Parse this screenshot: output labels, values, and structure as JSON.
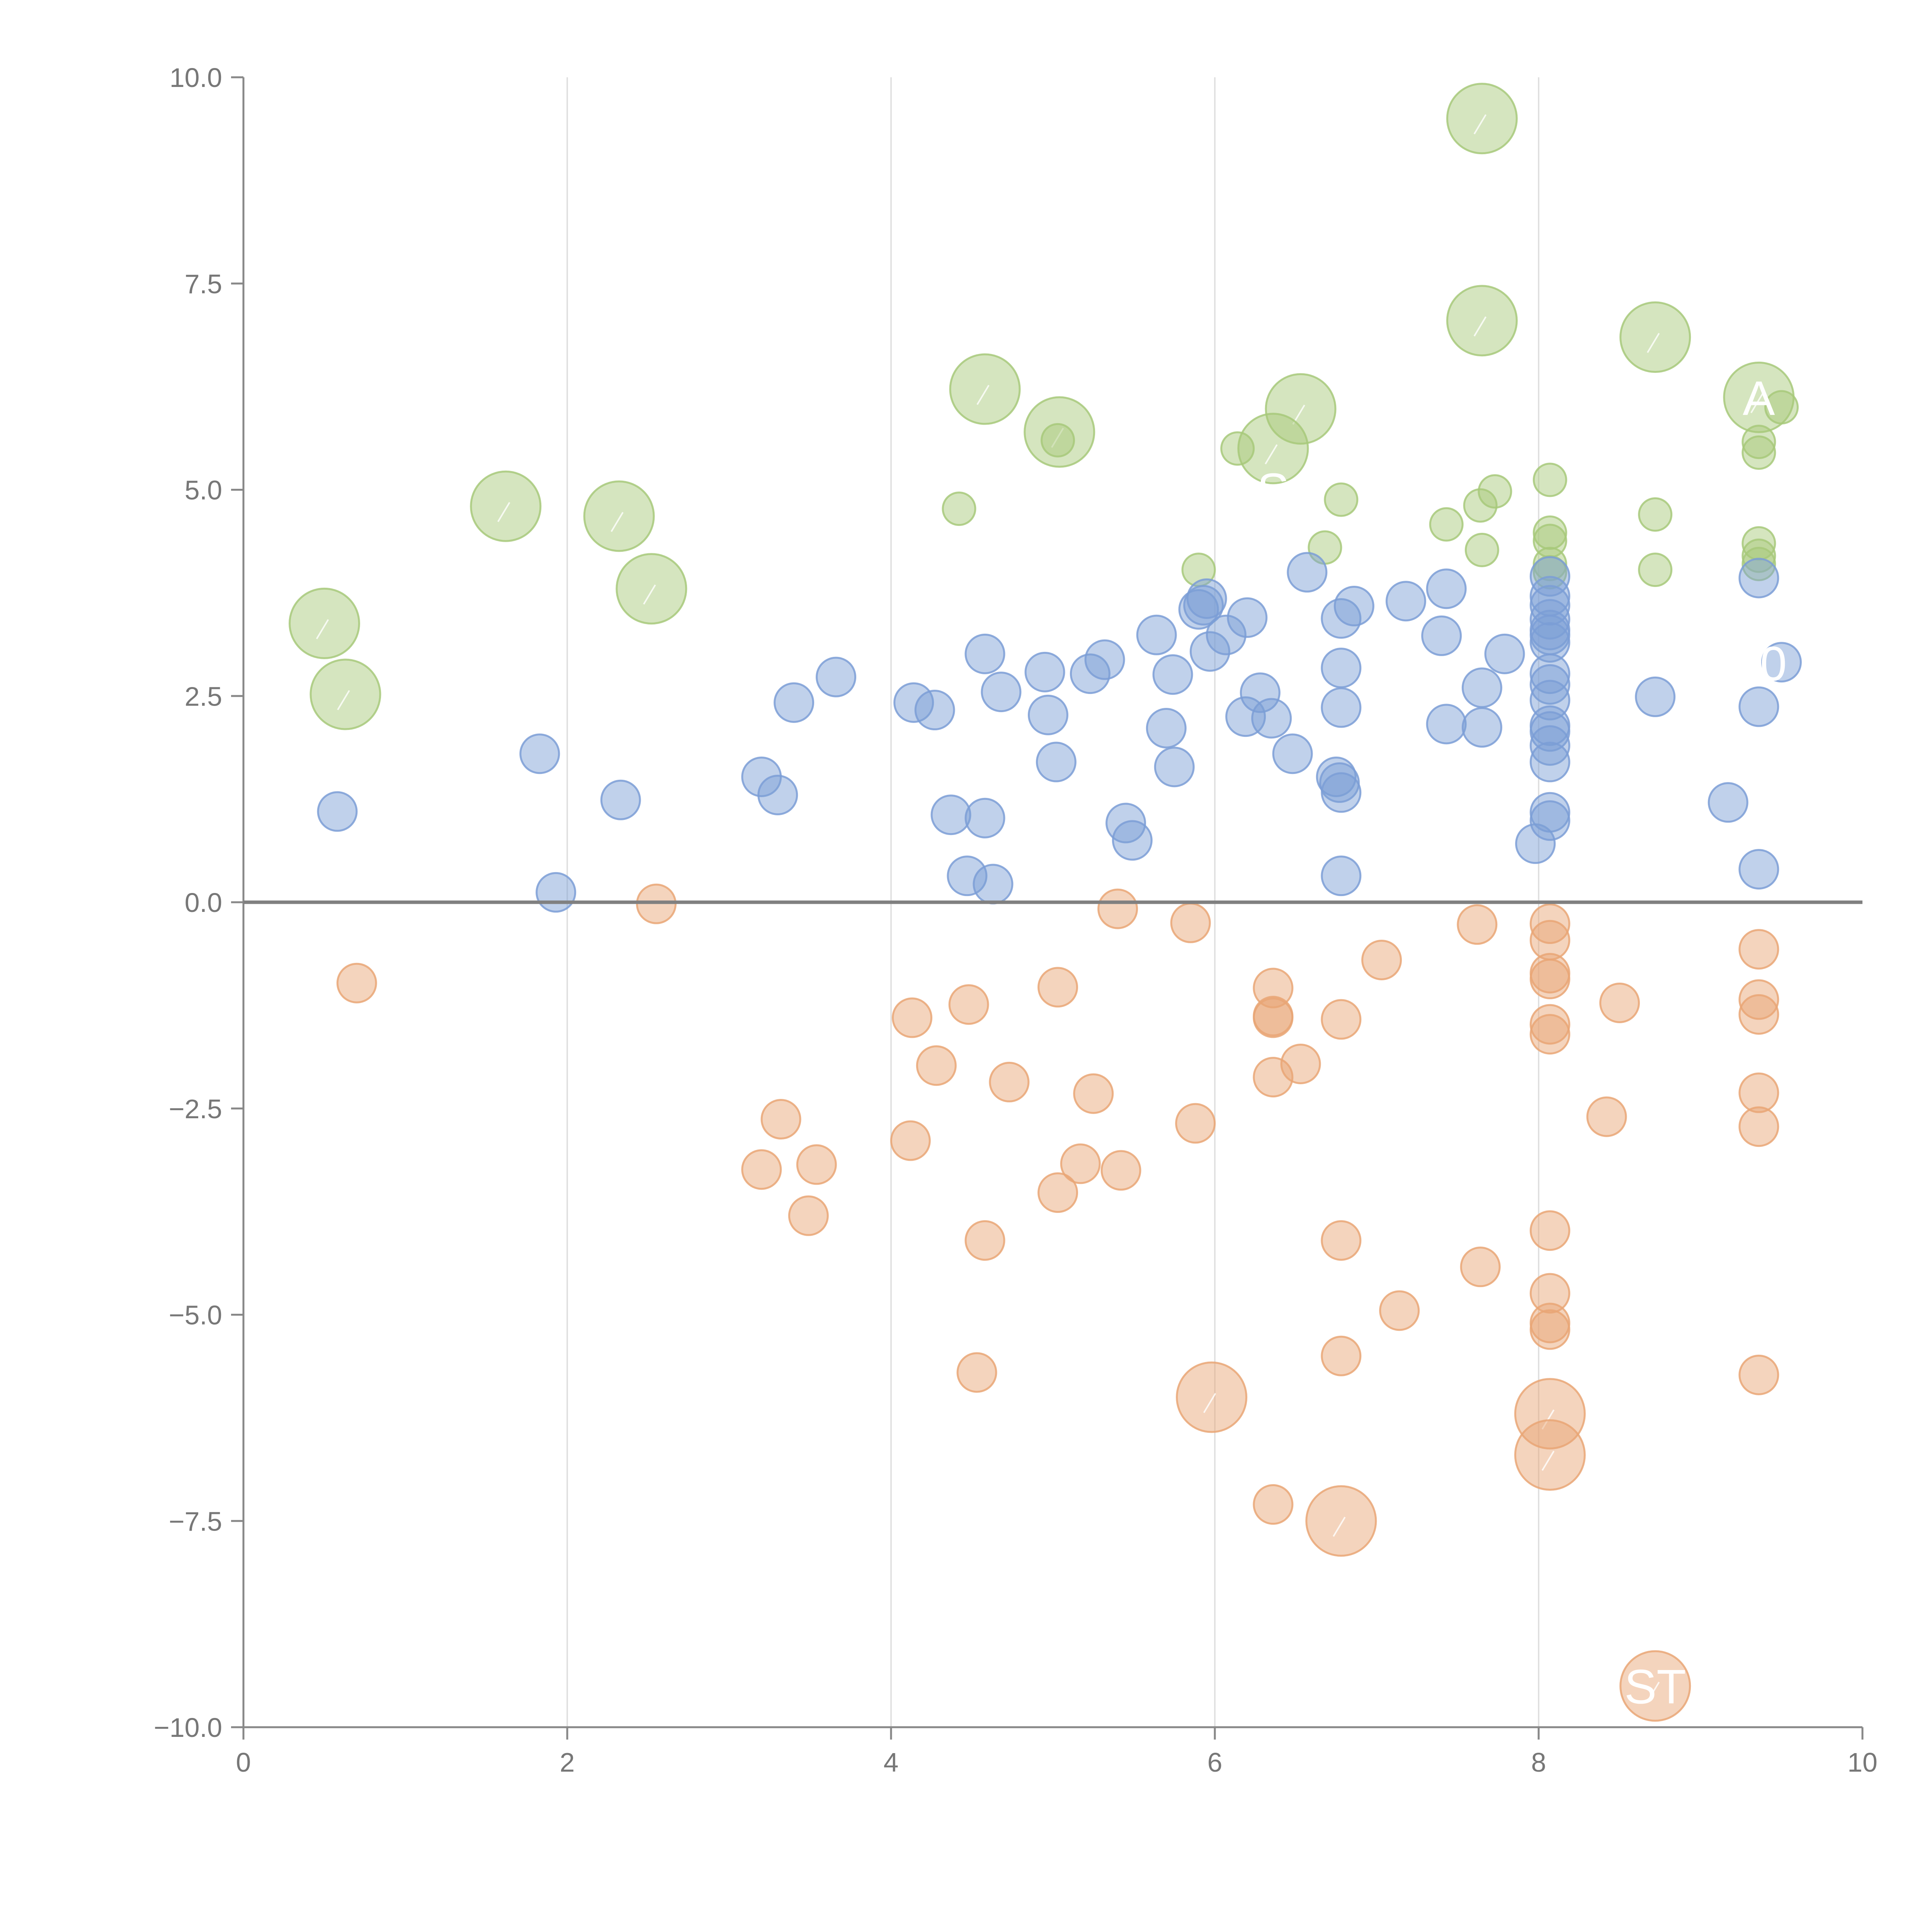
{
  "chart_data": {
    "type": "scatter",
    "title": "",
    "xlabel": "",
    "ylabel": "",
    "xlim": [
      0,
      10
    ],
    "ylim": [
      -10,
      10
    ],
    "x_ticks": [
      0,
      2,
      4,
      6,
      8,
      10
    ],
    "y_ticks": [
      -10.0,
      -7.5,
      -5.0,
      -2.5,
      0.0,
      2.5,
      5.0,
      7.5,
      10.0
    ],
    "x_tick_labels": [
      "0",
      "2",
      "4",
      "6",
      "8",
      "10"
    ],
    "y_tick_labels": [
      "−10.0",
      "−7.5",
      "−5.0",
      "−2.5",
      "0.0",
      "2.5",
      "5.0",
      "7.5",
      "10.0"
    ],
    "grid": "vertical lines at x ticks",
    "reference_line": {
      "y": 0
    },
    "series": [
      {
        "name": "green",
        "color": "#a7c97a",
        "points": [
          {
            "x": 7.65,
            "y": 9.5,
            "size": "large"
          },
          {
            "x": 7.65,
            "y": 7.05,
            "size": "large"
          },
          {
            "x": 8.72,
            "y": 6.85,
            "size": "large"
          },
          {
            "x": 4.58,
            "y": 6.22,
            "size": "large"
          },
          {
            "x": 5.04,
            "y": 5.7,
            "size": "large"
          },
          {
            "x": 6.53,
            "y": 5.98,
            "size": "large"
          },
          {
            "x": 6.36,
            "y": 5.5,
            "size": "large"
          },
          {
            "x": 9.36,
            "y": 6.12,
            "size": "large"
          },
          {
            "x": 1.62,
            "y": 4.8,
            "size": "large"
          },
          {
            "x": 2.32,
            "y": 4.68,
            "size": "large"
          },
          {
            "x": 2.52,
            "y": 3.8,
            "size": "large"
          },
          {
            "x": 0.5,
            "y": 3.38,
            "size": "large"
          },
          {
            "x": 0.63,
            "y": 2.52,
            "size": "large"
          },
          {
            "x": 5.03,
            "y": 5.6,
            "size": "small"
          },
          {
            "x": 6.14,
            "y": 5.5,
            "size": "small"
          },
          {
            "x": 4.42,
            "y": 4.77,
            "size": "small"
          },
          {
            "x": 6.78,
            "y": 4.88,
            "size": "small"
          },
          {
            "x": 5.9,
            "y": 4.03,
            "size": "small"
          },
          {
            "x": 6.68,
            "y": 4.3,
            "size": "small"
          },
          {
            "x": 7.43,
            "y": 4.58,
            "size": "small"
          },
          {
            "x": 7.64,
            "y": 4.81,
            "size": "small"
          },
          {
            "x": 7.73,
            "y": 4.98,
            "size": "small"
          },
          {
            "x": 7.65,
            "y": 4.27,
            "size": "small"
          },
          {
            "x": 8.07,
            "y": 5.12,
            "size": "small"
          },
          {
            "x": 8.07,
            "y": 4.48,
            "size": "small"
          },
          {
            "x": 8.07,
            "y": 4.38,
            "size": "small"
          },
          {
            "x": 8.07,
            "y": 4.1,
            "size": "small"
          },
          {
            "x": 8.07,
            "y": 4.0,
            "size": "small"
          },
          {
            "x": 8.72,
            "y": 4.7,
            "size": "small"
          },
          {
            "x": 8.72,
            "y": 4.03,
            "size": "small"
          },
          {
            "x": 9.36,
            "y": 5.58,
            "size": "small"
          },
          {
            "x": 9.36,
            "y": 5.45,
            "size": "small"
          },
          {
            "x": 9.5,
            "y": 6.0,
            "size": "small"
          },
          {
            "x": 9.36,
            "y": 4.35,
            "size": "small"
          },
          {
            "x": 9.36,
            "y": 4.2,
            "size": "small"
          },
          {
            "x": 9.36,
            "y": 4.1,
            "size": "small"
          }
        ]
      },
      {
        "name": "blue",
        "color": "#7b9ed6",
        "points": [
          {
            "x": 0.58,
            "y": 1.1
          },
          {
            "x": 1.83,
            "y": 1.8
          },
          {
            "x": 1.93,
            "y": 0.12
          },
          {
            "x": 2.33,
            "y": 1.24
          },
          {
            "x": 3.2,
            "y": 1.52
          },
          {
            "x": 3.3,
            "y": 1.3
          },
          {
            "x": 3.4,
            "y": 2.42
          },
          {
            "x": 3.66,
            "y": 2.73
          },
          {
            "x": 4.14,
            "y": 2.42
          },
          {
            "x": 4.27,
            "y": 2.33
          },
          {
            "x": 4.37,
            "y": 1.06
          },
          {
            "x": 4.47,
            "y": 0.32
          },
          {
            "x": 4.58,
            "y": 3.01
          },
          {
            "x": 4.58,
            "y": 1.02
          },
          {
            "x": 4.63,
            "y": 0.22
          },
          {
            "x": 4.68,
            "y": 2.55
          },
          {
            "x": 4.95,
            "y": 2.79
          },
          {
            "x": 4.97,
            "y": 2.27
          },
          {
            "x": 5.02,
            "y": 1.7
          },
          {
            "x": 5.23,
            "y": 2.77
          },
          {
            "x": 5.32,
            "y": 2.94
          },
          {
            "x": 5.45,
            "y": 0.96
          },
          {
            "x": 5.49,
            "y": 0.75
          },
          {
            "x": 5.64,
            "y": 3.24
          },
          {
            "x": 5.7,
            "y": 2.11
          },
          {
            "x": 5.74,
            "y": 2.76
          },
          {
            "x": 5.75,
            "y": 1.64
          },
          {
            "x": 5.9,
            "y": 3.55
          },
          {
            "x": 5.93,
            "y": 3.6
          },
          {
            "x": 5.95,
            "y": 3.68
          },
          {
            "x": 5.97,
            "y": 3.04
          },
          {
            "x": 6.07,
            "y": 3.24
          },
          {
            "x": 6.19,
            "y": 2.25
          },
          {
            "x": 6.2,
            "y": 3.45
          },
          {
            "x": 6.28,
            "y": 2.54
          },
          {
            "x": 6.35,
            "y": 2.23
          },
          {
            "x": 6.48,
            "y": 1.8
          },
          {
            "x": 6.57,
            "y": 4.0
          },
          {
            "x": 6.75,
            "y": 1.52
          },
          {
            "x": 6.77,
            "y": 1.45
          },
          {
            "x": 6.78,
            "y": 1.33
          },
          {
            "x": 6.78,
            "y": 3.44
          },
          {
            "x": 6.78,
            "y": 2.84
          },
          {
            "x": 6.78,
            "y": 2.36
          },
          {
            "x": 6.78,
            "y": 0.32
          },
          {
            "x": 6.86,
            "y": 3.59
          },
          {
            "x": 7.18,
            "y": 3.65
          },
          {
            "x": 7.4,
            "y": 3.23
          },
          {
            "x": 7.43,
            "y": 3.8
          },
          {
            "x": 7.43,
            "y": 2.16
          },
          {
            "x": 7.65,
            "y": 2.6
          },
          {
            "x": 7.65,
            "y": 2.12
          },
          {
            "x": 7.79,
            "y": 3.01
          },
          {
            "x": 7.98,
            "y": 0.71
          },
          {
            "x": 8.07,
            "y": 3.95
          },
          {
            "x": 8.07,
            "y": 3.71
          },
          {
            "x": 8.07,
            "y": 3.6
          },
          {
            "x": 8.07,
            "y": 3.43
          },
          {
            "x": 8.07,
            "y": 3.3
          },
          {
            "x": 8.07,
            "y": 3.24
          },
          {
            "x": 8.07,
            "y": 3.15
          },
          {
            "x": 8.07,
            "y": 2.77
          },
          {
            "x": 8.07,
            "y": 2.64
          },
          {
            "x": 8.07,
            "y": 2.45
          },
          {
            "x": 8.07,
            "y": 2.14
          },
          {
            "x": 8.07,
            "y": 2.07
          },
          {
            "x": 8.07,
            "y": 1.9
          },
          {
            "x": 8.07,
            "y": 1.7
          },
          {
            "x": 8.07,
            "y": 1.09
          },
          {
            "x": 8.07,
            "y": 0.99
          },
          {
            "x": 8.72,
            "y": 2.49
          },
          {
            "x": 9.17,
            "y": 1.21
          },
          {
            "x": 9.36,
            "y": 3.93
          },
          {
            "x": 9.36,
            "y": 2.37
          },
          {
            "x": 9.36,
            "y": 0.4
          },
          {
            "x": 9.5,
            "y": 2.91
          }
        ]
      },
      {
        "name": "orange",
        "color": "#e9a675",
        "points": [
          {
            "x": 5.98,
            "y": -6.0,
            "size": "large"
          },
          {
            "x": 8.07,
            "y": -6.2,
            "size": "large"
          },
          {
            "x": 8.07,
            "y": -6.7,
            "size": "large"
          },
          {
            "x": 6.78,
            "y": -7.5,
            "size": "large"
          },
          {
            "x": 8.72,
            "y": -9.5,
            "size": "large"
          },
          {
            "x": 0.7,
            "y": -0.98
          },
          {
            "x": 2.55,
            "y": -0.02
          },
          {
            "x": 3.2,
            "y": -3.24
          },
          {
            "x": 3.32,
            "y": -2.63
          },
          {
            "x": 3.49,
            "y": -3.8
          },
          {
            "x": 3.54,
            "y": -3.18
          },
          {
            "x": 4.12,
            "y": -2.89
          },
          {
            "x": 4.13,
            "y": -1.4
          },
          {
            "x": 4.28,
            "y": -1.98
          },
          {
            "x": 4.48,
            "y": -1.24
          },
          {
            "x": 4.53,
            "y": -5.7
          },
          {
            "x": 4.58,
            "y": -4.1
          },
          {
            "x": 4.73,
            "y": -2.18
          },
          {
            "x": 5.03,
            "y": -1.03
          },
          {
            "x": 5.03,
            "y": -3.52
          },
          {
            "x": 5.17,
            "y": -3.17
          },
          {
            "x": 5.25,
            "y": -2.32
          },
          {
            "x": 5.4,
            "y": -0.08
          },
          {
            "x": 5.42,
            "y": -3.25
          },
          {
            "x": 5.85,
            "y": -0.25
          },
          {
            "x": 5.88,
            "y": -2.68
          },
          {
            "x": 6.36,
            "y": -1.04
          },
          {
            "x": 6.36,
            "y": -1.38
          },
          {
            "x": 6.36,
            "y": -1.4
          },
          {
            "x": 6.36,
            "y": -2.12
          },
          {
            "x": 6.36,
            "y": -7.3
          },
          {
            "x": 6.53,
            "y": -1.96
          },
          {
            "x": 6.78,
            "y": -1.42
          },
          {
            "x": 6.78,
            "y": -4.1
          },
          {
            "x": 6.78,
            "y": -5.5
          },
          {
            "x": 7.03,
            "y": -0.7
          },
          {
            "x": 7.14,
            "y": -4.95
          },
          {
            "x": 7.62,
            "y": -0.27
          },
          {
            "x": 7.64,
            "y": -4.42
          },
          {
            "x": 8.07,
            "y": -0.26
          },
          {
            "x": 8.07,
            "y": -0.46
          },
          {
            "x": 8.07,
            "y": -0.86
          },
          {
            "x": 8.07,
            "y": -0.93
          },
          {
            "x": 8.07,
            "y": -1.48
          },
          {
            "x": 8.07,
            "y": -1.6
          },
          {
            "x": 8.07,
            "y": -3.98
          },
          {
            "x": 8.07,
            "y": -4.74
          },
          {
            "x": 8.07,
            "y": -5.1
          },
          {
            "x": 8.07,
            "y": -5.18
          },
          {
            "x": 8.42,
            "y": -2.6
          },
          {
            "x": 8.5,
            "y": -1.22
          },
          {
            "x": 9.36,
            "y": -0.57
          },
          {
            "x": 9.36,
            "y": -1.18
          },
          {
            "x": 9.36,
            "y": -1.36
          },
          {
            "x": 9.36,
            "y": -2.31
          },
          {
            "x": 9.36,
            "y": -2.72
          },
          {
            "x": 9.36,
            "y": -5.73
          }
        ]
      }
    ],
    "annotations": [
      {
        "text": "A",
        "x": 9.36,
        "y": 6.12
      },
      {
        "text": "S",
        "x": 6.36,
        "y": 5.0
      },
      {
        "text": "0",
        "x": 9.45,
        "y": 2.9
      },
      {
        "text": "ST",
        "x": 8.72,
        "y": -9.5
      }
    ]
  }
}
